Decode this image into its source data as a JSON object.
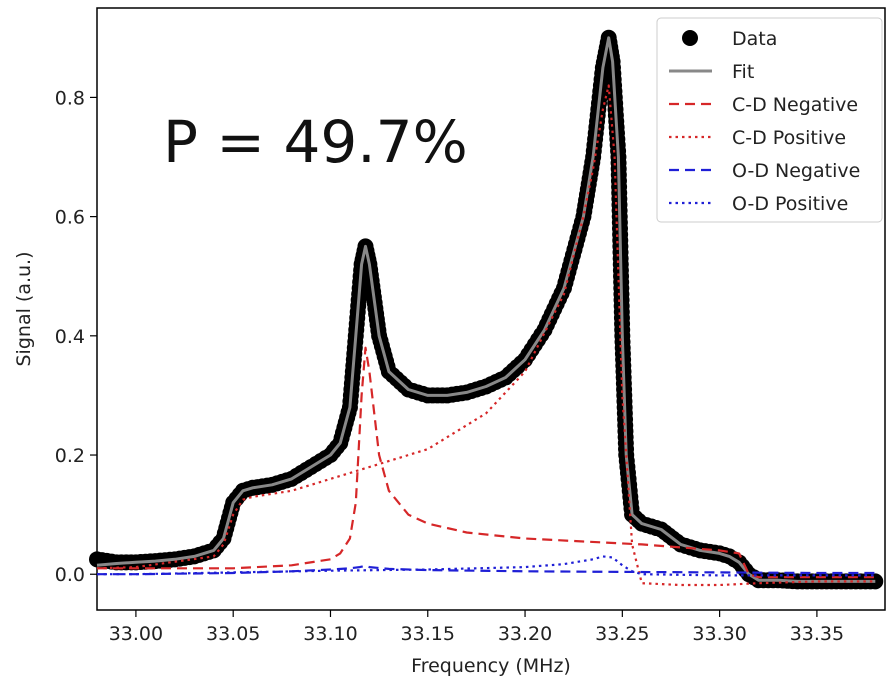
{
  "chart_data": {
    "type": "line",
    "title": "",
    "xlabel": "Frequency (MHz)",
    "ylabel": "Signal (a.u.)",
    "xlim": [
      32.98,
      33.385
    ],
    "ylim": [
      -0.06,
      0.95
    ],
    "xticks": [
      "33.00",
      "33.05",
      "33.10",
      "33.15",
      "33.20",
      "33.25",
      "33.30",
      "33.35"
    ],
    "yticks": [
      "0.0",
      "0.2",
      "0.4",
      "0.6",
      "0.8"
    ],
    "grid": false,
    "legend_position": "top-right",
    "annotation": "P = 49.7%",
    "colors": {
      "data": "#000000",
      "fit": "#888888",
      "cd": "#d62728",
      "od": "#1f1fd6"
    },
    "series": [
      {
        "name": "Data",
        "style": "markers",
        "x": [
          32.98,
          32.99,
          33.0,
          33.01,
          33.02,
          33.03,
          33.04,
          33.045,
          33.05,
          33.055,
          33.06,
          33.07,
          33.08,
          33.09,
          33.1,
          33.105,
          33.11,
          33.113,
          33.116,
          33.118,
          33.12,
          33.125,
          33.13,
          33.14,
          33.15,
          33.16,
          33.17,
          33.18,
          33.19,
          33.2,
          33.21,
          33.22,
          33.23,
          33.235,
          33.24,
          33.243,
          33.245,
          33.248,
          33.25,
          33.252,
          33.255,
          33.26,
          33.27,
          33.28,
          33.29,
          33.3,
          33.305,
          33.31,
          33.315,
          33.32,
          33.33,
          33.34,
          33.35,
          33.36,
          33.37,
          33.38
        ],
        "y": [
          0.025,
          0.02,
          0.02,
          0.022,
          0.025,
          0.03,
          0.04,
          0.06,
          0.12,
          0.14,
          0.145,
          0.15,
          0.16,
          0.18,
          0.2,
          0.22,
          0.28,
          0.4,
          0.52,
          0.55,
          0.52,
          0.4,
          0.34,
          0.31,
          0.3,
          0.3,
          0.305,
          0.315,
          0.33,
          0.36,
          0.41,
          0.48,
          0.6,
          0.7,
          0.85,
          0.9,
          0.86,
          0.7,
          0.4,
          0.2,
          0.1,
          0.085,
          0.075,
          0.05,
          0.04,
          0.035,
          0.03,
          0.02,
          0.0,
          -0.01,
          -0.01,
          -0.012,
          -0.012,
          -0.012,
          -0.012,
          -0.012
        ]
      },
      {
        "name": "Fit",
        "style": "solid",
        "x": [
          32.98,
          32.99,
          33.0,
          33.01,
          33.02,
          33.03,
          33.04,
          33.045,
          33.05,
          33.055,
          33.06,
          33.07,
          33.08,
          33.09,
          33.1,
          33.105,
          33.11,
          33.113,
          33.116,
          33.118,
          33.12,
          33.125,
          33.13,
          33.14,
          33.15,
          33.16,
          33.17,
          33.18,
          33.19,
          33.2,
          33.21,
          33.22,
          33.23,
          33.235,
          33.24,
          33.243,
          33.245,
          33.248,
          33.25,
          33.252,
          33.255,
          33.26,
          33.27,
          33.28,
          33.29,
          33.3,
          33.305,
          33.31,
          33.315,
          33.32,
          33.33,
          33.34,
          33.35,
          33.36,
          33.37,
          33.38
        ],
        "y": [
          0.015,
          0.018,
          0.02,
          0.022,
          0.025,
          0.03,
          0.04,
          0.06,
          0.12,
          0.14,
          0.145,
          0.15,
          0.16,
          0.18,
          0.2,
          0.22,
          0.28,
          0.4,
          0.52,
          0.55,
          0.52,
          0.4,
          0.34,
          0.31,
          0.3,
          0.3,
          0.305,
          0.315,
          0.33,
          0.36,
          0.41,
          0.48,
          0.6,
          0.7,
          0.85,
          0.9,
          0.86,
          0.7,
          0.4,
          0.2,
          0.1,
          0.085,
          0.075,
          0.05,
          0.04,
          0.035,
          0.03,
          0.02,
          0.0,
          -0.01,
          -0.01,
          -0.012,
          -0.012,
          -0.012,
          -0.012,
          -0.012
        ]
      },
      {
        "name": "C-D Negative",
        "style": "dashed",
        "x": [
          32.98,
          33.0,
          33.05,
          33.08,
          33.1,
          33.105,
          33.11,
          33.113,
          33.116,
          33.118,
          33.12,
          33.125,
          33.13,
          33.14,
          33.15,
          33.17,
          33.2,
          33.23,
          33.26,
          33.28,
          33.3,
          33.31,
          33.315,
          33.32,
          33.35,
          33.38
        ],
        "y": [
          0.01,
          0.01,
          0.01,
          0.015,
          0.025,
          0.035,
          0.06,
          0.12,
          0.3,
          0.38,
          0.34,
          0.2,
          0.14,
          0.1,
          0.085,
          0.07,
          0.06,
          0.055,
          0.05,
          0.045,
          0.04,
          0.035,
          0.0,
          -0.005,
          -0.005,
          -0.005
        ]
      },
      {
        "name": "C-D Positive",
        "style": "dotted",
        "x": [
          32.98,
          33.0,
          33.04,
          33.045,
          33.05,
          33.055,
          33.06,
          33.08,
          33.1,
          33.12,
          33.15,
          33.18,
          33.2,
          33.22,
          33.23,
          33.235,
          33.24,
          33.243,
          33.246,
          33.25,
          33.255,
          33.26,
          33.28,
          33.3,
          33.32,
          33.35,
          33.38
        ],
        "y": [
          0.01,
          0.012,
          0.03,
          0.05,
          0.1,
          0.125,
          0.13,
          0.14,
          0.16,
          0.18,
          0.21,
          0.27,
          0.34,
          0.47,
          0.6,
          0.68,
          0.78,
          0.82,
          0.7,
          0.3,
          0.05,
          -0.015,
          -0.018,
          -0.018,
          -0.015,
          -0.012,
          -0.012
        ]
      },
      {
        "name": "O-D Negative",
        "style": "dashed",
        "x": [
          32.98,
          33.0,
          33.05,
          33.08,
          33.1,
          33.11,
          33.115,
          33.118,
          33.12,
          33.13,
          33.15,
          33.2,
          33.25,
          33.3,
          33.35,
          33.38
        ],
        "y": [
          0.0,
          0.0,
          0.002,
          0.005,
          0.008,
          0.01,
          0.012,
          0.014,
          0.012,
          0.009,
          0.007,
          0.005,
          0.004,
          0.003,
          0.002,
          0.002
        ]
      },
      {
        "name": "O-D Positive",
        "style": "dotted",
        "x": [
          32.98,
          33.0,
          33.05,
          33.1,
          33.15,
          33.2,
          33.22,
          33.235,
          33.24,
          33.245,
          33.25,
          33.255,
          33.26,
          33.3,
          33.35,
          33.38
        ],
        "y": [
          0.0,
          0.0,
          0.003,
          0.006,
          0.008,
          0.012,
          0.017,
          0.025,
          0.03,
          0.028,
          0.015,
          0.005,
          0.0,
          -0.002,
          -0.002,
          -0.002
        ]
      }
    ]
  }
}
